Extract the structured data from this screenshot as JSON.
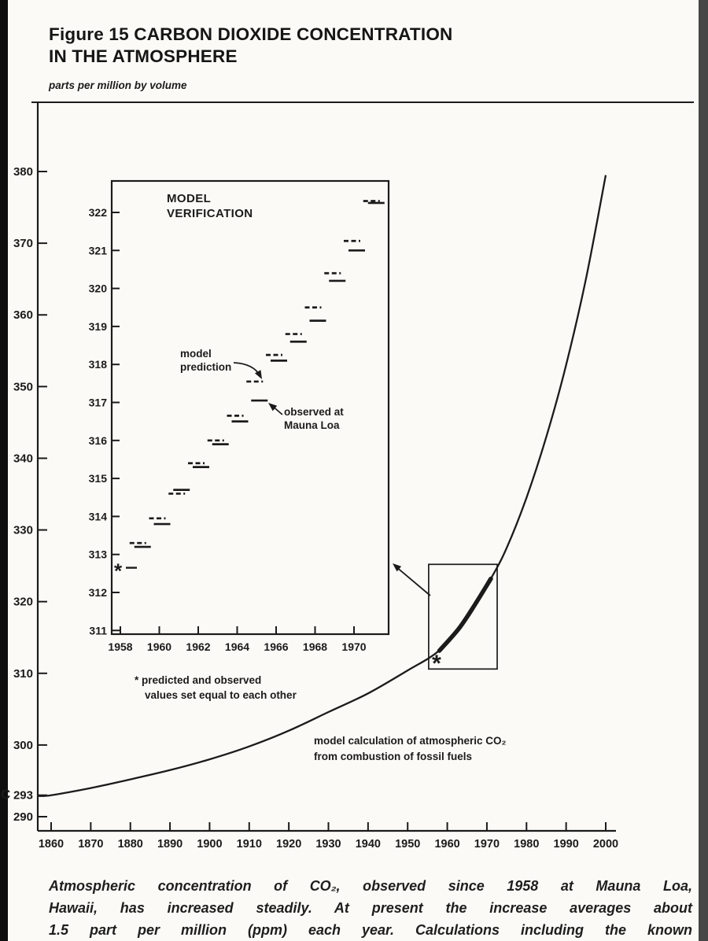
{
  "page": {
    "background": "#fbfaf6",
    "ink": "#1b1b1b",
    "figure_title_line1": "Figure 15 CARBON DIOXIDE CONCENTRATION",
    "figure_title_line2": "IN THE ATMOSPHERE",
    "axis_unit_label": "parts per million by volume",
    "margin_artifact": "C",
    "caption_lines": [
      "Atmospheric concentration of CO₂, observed since 1958 at Mauna Loa,",
      "Hawaii, has increased steadily. At present the increase averages about",
      "1.5 part per million (ppm) each year. Calculations including the known"
    ]
  },
  "chart_data": [
    {
      "id": "main-curve",
      "type": "line",
      "title": "Figure 15 CARBON DIOXIDE CONCENTRATION IN THE ATMOSPHERE",
      "xlabel": "",
      "ylabel": "parts per million by volume",
      "xlim": [
        1860,
        2000
      ],
      "ylim": [
        290,
        383
      ],
      "grid": false,
      "x_ticks": [
        1860,
        1870,
        1880,
        1890,
        1900,
        1910,
        1920,
        1930,
        1940,
        1950,
        1960,
        1970,
        1980,
        1990,
        2000
      ],
      "y_ticks": [
        290,
        293,
        300,
        310,
        320,
        330,
        340,
        350,
        360,
        370,
        380
      ],
      "series": [
        {
          "name": "model calculation of atmospheric CO₂ from combustion of fossil fuels",
          "style": "solid",
          "x": [
            1860,
            1870,
            1880,
            1890,
            1900,
            1910,
            1920,
            1930,
            1940,
            1950,
            1958,
            1965,
            1971,
            1975,
            1980,
            1985,
            1990,
            1995,
            2000
          ],
          "y": [
            293,
            294,
            295.2,
            296.5,
            298,
            299.8,
            302,
            304.6,
            307.2,
            310.4,
            313.2,
            317.6,
            323.2,
            327.5,
            334.5,
            343,
            353,
            365,
            379.5
          ]
        },
        {
          "name": "observed at Mauna Loa 1958-1971 (thick highlighted segment)",
          "style": "thick",
          "x": [
            1958,
            1963,
            1967,
            1971
          ],
          "y": [
            313.15,
            316.3,
            319.6,
            323.2
          ]
        }
      ],
      "annotation_lines": [
        "model calculation of atmospheric CO₂",
        "from combustion of fossil fuels"
      ],
      "start_marker": {
        "symbol": "*",
        "x": 1957.3,
        "y": 312.5
      },
      "highlight_box": {
        "x0": 1955.3,
        "x1": 1972.6,
        "y0": 310.6,
        "y1": 325.2
      }
    },
    {
      "id": "inset-model-verification",
      "type": "line",
      "title": "MODEL VERIFICATION",
      "title_lines": [
        "MODEL",
        "VERIFICATION"
      ],
      "xlim": [
        1957.6,
        1971.8
      ],
      "ylim": [
        310.9,
        322.9
      ],
      "grid": false,
      "x_ticks": [
        1958,
        1960,
        1962,
        1964,
        1966,
        1968,
        1970
      ],
      "y_ticks": [
        311,
        312,
        313,
        314,
        315,
        316,
        317,
        318,
        319,
        320,
        321,
        322
      ],
      "years": [
        1959,
        1960,
        1961,
        1962,
        1963,
        1964,
        1965,
        1966,
        1967,
        1968,
        1969,
        1970,
        1971
      ],
      "series": [
        {
          "name": "model prediction",
          "style": "dashed",
          "values": [
            313.3,
            313.95,
            314.6,
            315.4,
            316.0,
            316.65,
            317.55,
            318.25,
            318.8,
            319.5,
            320.4,
            321.25,
            322.3
          ]
        },
        {
          "name": "observed at Mauna Loa",
          "style": "solid",
          "values": [
            313.2,
            313.8,
            314.7,
            315.3,
            315.9,
            316.5,
            317.05,
            318.1,
            318.6,
            319.15,
            320.2,
            321.0,
            322.25
          ]
        }
      ],
      "start_marker": {
        "symbol": "*",
        "year": 1958,
        "value": 312.65
      },
      "label_prediction_lines": [
        "model",
        "prediction"
      ],
      "label_observed_lines": [
        "observed at",
        "Mauna Loa"
      ],
      "footnote_lines": [
        "* predicted and observed",
        "values set equal to each other"
      ]
    }
  ]
}
